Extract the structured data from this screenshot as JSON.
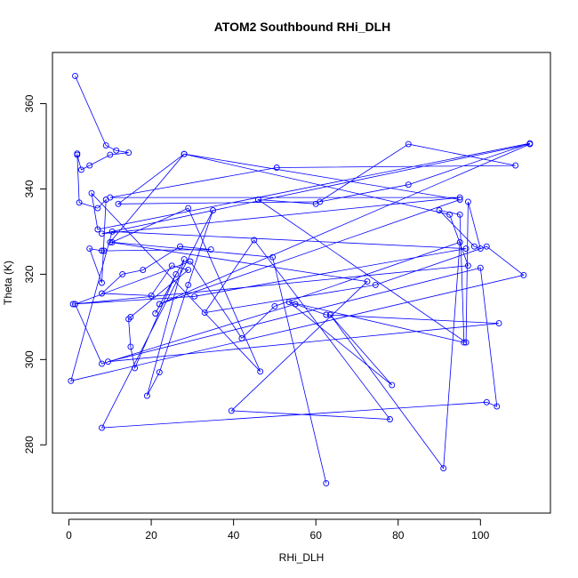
{
  "chart_data": {
    "type": "line",
    "title": "ATOM2 Southbound RHi_DLH",
    "xlabel": "RHi_DLH",
    "ylabel": "Theta (K)",
    "xlim": [
      -4,
      117
    ],
    "ylim": [
      264,
      372
    ],
    "xticks": [
      0,
      20,
      40,
      60,
      80,
      100
    ],
    "yticks": [
      280,
      300,
      320,
      340,
      360
    ],
    "grid": false,
    "legend": "none",
    "markers": "open-circle",
    "color": "#0000ff",
    "series": [
      {
        "points": [
          [
            1.5,
            366.5
          ],
          [
            9,
            350.2
          ],
          [
            11.5,
            349
          ],
          [
            14.5,
            348.5
          ],
          [
            10,
            348
          ],
          [
            5,
            345.5
          ],
          [
            3,
            344.5
          ],
          [
            2,
            348
          ],
          [
            2,
            348.3
          ],
          [
            2.5,
            336.8
          ],
          [
            7,
            335.5
          ],
          [
            9,
            337.5
          ],
          [
            8,
            318
          ],
          [
            5,
            326
          ],
          [
            8,
            325.5
          ],
          [
            8.5,
            325.5
          ],
          [
            34.5,
            325.8
          ],
          [
            27,
            326.5
          ],
          [
            18,
            321
          ],
          [
            13,
            320
          ],
          [
            8,
            315.5
          ],
          [
            20,
            315
          ],
          [
            25,
            322
          ],
          [
            29,
            321
          ],
          [
            15,
            310
          ],
          [
            14.5,
            309.5
          ],
          [
            15,
            303
          ],
          [
            16,
            298
          ],
          [
            26,
            320
          ],
          [
            21,
            310.8
          ],
          [
            28,
            323.5
          ],
          [
            19,
            291.5
          ],
          [
            22,
            297
          ],
          [
            29,
            317.5
          ],
          [
            35,
            335
          ],
          [
            8,
            284
          ],
          [
            101.5,
            290
          ],
          [
            104,
            289
          ],
          [
            100,
            321.5
          ],
          [
            9.5,
            299.5
          ],
          [
            104.5,
            308.5
          ],
          [
            62.5,
            310.5
          ],
          [
            55,
            313
          ],
          [
            8,
            299
          ],
          [
            1.5,
            313
          ],
          [
            29.5,
            323
          ],
          [
            42,
            305
          ],
          [
            50,
            312.5
          ],
          [
            95,
            327.5
          ],
          [
            91,
            274.5
          ],
          [
            63.5,
            310.5
          ],
          [
            78.5,
            294
          ],
          [
            53.5,
            313.5
          ],
          [
            96,
            304
          ],
          [
            95,
            334
          ],
          [
            90,
            335
          ],
          [
            98.5,
            326.5
          ],
          [
            100,
            326
          ],
          [
            97,
            337
          ],
          [
            96.5,
            304
          ],
          [
            46,
            337.5
          ],
          [
            60,
            336.5
          ],
          [
            82.5,
            350.5
          ],
          [
            108.5,
            345.5
          ],
          [
            50.5,
            345
          ],
          [
            10,
            338
          ],
          [
            95,
            338
          ],
          [
            8,
            329.5
          ],
          [
            112,
            350.5
          ],
          [
            22,
            313
          ],
          [
            95,
            337.5
          ],
          [
            28,
            348.2
          ],
          [
            10,
            327.5
          ],
          [
            72.5,
            318.3
          ],
          [
            39.5,
            288
          ],
          [
            78,
            286
          ],
          [
            45,
            328
          ],
          [
            33,
            311
          ],
          [
            74.5,
            317.5
          ],
          [
            101.5,
            326.5
          ],
          [
            110.5,
            319.8
          ],
          [
            0.5,
            295
          ],
          [
            10.5,
            330
          ],
          [
            96.5,
            326
          ],
          [
            30.5,
            314.8
          ],
          [
            1,
            313
          ],
          [
            97,
            322
          ],
          [
            92.5,
            334
          ],
          [
            28,
            348.2
          ],
          [
            12,
            336.5
          ],
          [
            61,
            337
          ],
          [
            82.5,
            341
          ],
          [
            112,
            350.7
          ],
          [
            7,
            330.5
          ],
          [
            5.5,
            339
          ],
          [
            46.5,
            297.2
          ],
          [
            29,
            335.5
          ],
          [
            10.5,
            327.5
          ],
          [
            49.5,
            324
          ],
          [
            62.5,
            271
          ]
        ]
      }
    ]
  }
}
